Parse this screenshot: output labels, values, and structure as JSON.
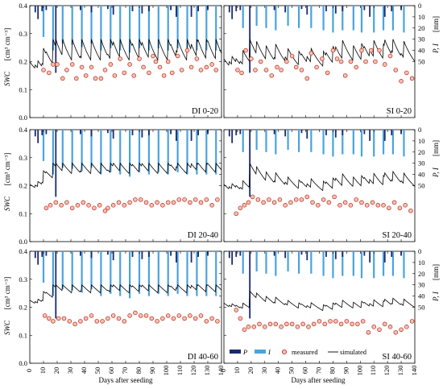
{
  "figure": {
    "x_axis_title": "Days after seeding",
    "y_left_title_main": "SWC",
    "y_left_title_units": "[cm³ cm⁻³]",
    "y_right_title_main": "P, I",
    "y_right_title_units": "[mm]",
    "x_tick_labels": [
      "0",
      "10",
      "20",
      "30",
      "40",
      "50",
      "60",
      "70",
      "80",
      "90",
      "100",
      "110",
      "120",
      "130",
      "140"
    ],
    "y_left_tick_labels": [
      "0.0",
      "0.1",
      "0.2",
      "0.3",
      "0.4"
    ],
    "y_right_tick_labels": [
      "0",
      "10",
      "20",
      "30",
      "40",
      "50"
    ],
    "legend": {
      "precip_label": "P",
      "irrig_label": "I",
      "measured_label": "measured",
      "simulated_label": "simulated"
    },
    "colors": {
      "precipitation": "#1b2a6b",
      "irrigation": "#4aa3df",
      "measured_edge": "#c0392b",
      "measured_fill": "#f6c2b3",
      "simulated": "#000000"
    }
  },
  "chart_data": {
    "type": "line",
    "xlabel": "Days after seeding",
    "ylabel": "SWC [cm³ cm⁻³]",
    "ylabel_right": "P, I [mm]",
    "xlim": [
      0,
      140
    ],
    "ylim": [
      0,
      0.4
    ],
    "ylim_right": [
      0,
      100
    ],
    "grid": false,
    "legend_position": "bottom-right",
    "events": {
      "precipitation": [
        {
          "day": 4,
          "mm": 6
        },
        {
          "day": 6,
          "mm": 12
        },
        {
          "day": 9,
          "mm": 5
        },
        {
          "day": 12,
          "mm": 4
        },
        {
          "day": 19,
          "mm": 60
        },
        {
          "day": 37,
          "mm": 4
        },
        {
          "day": 45,
          "mm": 6
        },
        {
          "day": 57,
          "mm": 3
        },
        {
          "day": 61,
          "mm": 8
        },
        {
          "day": 75,
          "mm": 5
        },
        {
          "day": 82,
          "mm": 7
        },
        {
          "day": 87,
          "mm": 5
        },
        {
          "day": 103,
          "mm": 4
        },
        {
          "day": 107,
          "mm": 10
        },
        {
          "day": 118,
          "mm": 10
        },
        {
          "day": 123,
          "mm": 5
        },
        {
          "day": 130,
          "mm": 4
        }
      ],
      "irrigation_DI": [
        {
          "day": 10,
          "mm": 28
        },
        {
          "day": 17,
          "mm": 40
        },
        {
          "day": 24,
          "mm": 34
        },
        {
          "day": 31,
          "mm": 35
        },
        {
          "day": 38,
          "mm": 37
        },
        {
          "day": 45,
          "mm": 34
        },
        {
          "day": 52,
          "mm": 40
        },
        {
          "day": 59,
          "mm": 38
        },
        {
          "day": 66,
          "mm": 40
        },
        {
          "day": 73,
          "mm": 42
        },
        {
          "day": 80,
          "mm": 38
        },
        {
          "day": 87,
          "mm": 40
        },
        {
          "day": 94,
          "mm": 38
        },
        {
          "day": 101,
          "mm": 40
        },
        {
          "day": 108,
          "mm": 38
        },
        {
          "day": 115,
          "mm": 40
        },
        {
          "day": 122,
          "mm": 40
        },
        {
          "day": 129,
          "mm": 40
        },
        {
          "day": 136,
          "mm": 40
        }
      ],
      "irrigation_SI": [
        {
          "day": 14,
          "mm": 20
        },
        {
          "day": 24,
          "mm": 18
        },
        {
          "day": 31,
          "mm": 20
        },
        {
          "day": 38,
          "mm": 22
        },
        {
          "day": 47,
          "mm": 18
        },
        {
          "day": 55,
          "mm": 20
        },
        {
          "day": 64,
          "mm": 20
        },
        {
          "day": 73,
          "mm": 22
        },
        {
          "day": 80,
          "mm": 24
        },
        {
          "day": 87,
          "mm": 22
        },
        {
          "day": 95,
          "mm": 22
        },
        {
          "day": 101,
          "mm": 24
        },
        {
          "day": 110,
          "mm": 24
        },
        {
          "day": 117,
          "mm": 22
        },
        {
          "day": 124,
          "mm": 22
        },
        {
          "day": 132,
          "mm": 24
        }
      ]
    },
    "panels": [
      {
        "label": "DI 0-20",
        "treatment": "DI",
        "depth": "0-20",
        "simulated_params": {
          "base": 0.135,
          "decay": 0.095,
          "floor": 0.12,
          "jump_per_mm": 0.0022
        },
        "measured": [
          [
            10,
            0.17
          ],
          [
            14,
            0.16
          ],
          [
            17,
            0.19
          ],
          [
            20,
            0.19
          ],
          [
            24,
            0.14
          ],
          [
            27,
            0.17
          ],
          [
            31,
            0.19
          ],
          [
            34,
            0.14
          ],
          [
            38,
            0.18
          ],
          [
            41,
            0.15
          ],
          [
            45,
            0.18
          ],
          [
            48,
            0.14
          ],
          [
            52,
            0.14
          ],
          [
            55,
            0.17
          ],
          [
            59,
            0.19
          ],
          [
            62,
            0.15
          ],
          [
            66,
            0.21
          ],
          [
            69,
            0.16
          ],
          [
            73,
            0.19
          ],
          [
            76,
            0.15
          ],
          [
            80,
            0.21
          ],
          [
            83,
            0.18
          ],
          [
            87,
            0.16
          ],
          [
            90,
            0.22
          ],
          [
            92,
            0.2
          ],
          [
            95,
            0.18
          ],
          [
            98,
            0.15
          ],
          [
            101,
            0.2
          ],
          [
            104,
            0.16
          ],
          [
            108,
            0.22
          ],
          [
            111,
            0.17
          ],
          [
            115,
            0.24
          ],
          [
            118,
            0.18
          ],
          [
            122,
            0.21
          ],
          [
            125,
            0.17
          ],
          [
            129,
            0.18
          ],
          [
            133,
            0.19
          ],
          [
            136,
            0.17
          ]
        ]
      },
      {
        "label": "SI 0-20",
        "treatment": "SI",
        "depth": "0-20",
        "simulated_params": {
          "base": 0.145,
          "decay": 0.08,
          "floor": 0.12,
          "jump_per_mm": 0.0025
        },
        "measured": [
          [
            10,
            0.17
          ],
          [
            13,
            0.16
          ],
          [
            16,
            0.24
          ],
          [
            20,
            0.21
          ],
          [
            23,
            0.17
          ],
          [
            27,
            0.2
          ],
          [
            31,
            0.17
          ],
          [
            35,
            0.15
          ],
          [
            39,
            0.18
          ],
          [
            42,
            0.17
          ],
          [
            46,
            0.2
          ],
          [
            50,
            0.22
          ],
          [
            53,
            0.18
          ],
          [
            57,
            0.17
          ],
          [
            61,
            0.14
          ],
          [
            64,
            0.23
          ],
          [
            68,
            0.18
          ],
          [
            72,
            0.21
          ],
          [
            76,
            0.16
          ],
          [
            80,
            0.24
          ],
          [
            83,
            0.21
          ],
          [
            86,
            0.2
          ],
          [
            89,
            0.15
          ],
          [
            93,
            0.2
          ],
          [
            97,
            0.18
          ],
          [
            101,
            0.24
          ],
          [
            104,
            0.2
          ],
          [
            108,
            0.24
          ],
          [
            111,
            0.2
          ],
          [
            114,
            0.24
          ],
          [
            118,
            0.19
          ],
          [
            122,
            0.22
          ],
          [
            126,
            0.17
          ],
          [
            130,
            0.13
          ],
          [
            134,
            0.16
          ],
          [
            138,
            0.14
          ]
        ]
      },
      {
        "label": "DI 20-40",
        "treatment": "DI",
        "depth": "20-40",
        "simulated_params": {
          "base": 0.14,
          "decay": 0.04,
          "floor": 0.12,
          "jump_per_mm": 0.0016
        },
        "measured": [
          [
            12,
            0.12
          ],
          [
            15,
            0.13
          ],
          [
            19,
            0.14
          ],
          [
            23,
            0.13
          ],
          [
            27,
            0.14
          ],
          [
            31,
            0.12
          ],
          [
            35,
            0.13
          ],
          [
            39,
            0.14
          ],
          [
            43,
            0.13
          ],
          [
            47,
            0.12
          ],
          [
            51,
            0.13
          ],
          [
            55,
            0.11
          ],
          [
            57,
            0.12
          ],
          [
            61,
            0.13
          ],
          [
            65,
            0.14
          ],
          [
            69,
            0.13
          ],
          [
            73,
            0.14
          ],
          [
            77,
            0.15
          ],
          [
            81,
            0.15
          ],
          [
            85,
            0.14
          ],
          [
            89,
            0.13
          ],
          [
            93,
            0.14
          ],
          [
            97,
            0.13
          ],
          [
            101,
            0.14
          ],
          [
            105,
            0.14
          ],
          [
            109,
            0.15
          ],
          [
            113,
            0.15
          ],
          [
            117,
            0.14
          ],
          [
            121,
            0.15
          ],
          [
            125,
            0.14
          ],
          [
            129,
            0.15
          ],
          [
            133,
            0.13
          ],
          [
            137,
            0.15
          ]
        ]
      },
      {
        "label": "SI 20-40",
        "treatment": "SI",
        "depth": "20-40",
        "simulated_params": {
          "base": 0.14,
          "decay": 0.06,
          "floor": 0.12,
          "jump_per_mm": 0.0016
        },
        "measured": [
          [
            9,
            0.1
          ],
          [
            12,
            0.12
          ],
          [
            15,
            0.13
          ],
          [
            18,
            0.14
          ],
          [
            21,
            0.16
          ],
          [
            25,
            0.15
          ],
          [
            29,
            0.14
          ],
          [
            33,
            0.15
          ],
          [
            37,
            0.14
          ],
          [
            41,
            0.15
          ],
          [
            45,
            0.13
          ],
          [
            49,
            0.14
          ],
          [
            53,
            0.15
          ],
          [
            57,
            0.15
          ],
          [
            61,
            0.16
          ],
          [
            65,
            0.14
          ],
          [
            69,
            0.13
          ],
          [
            73,
            0.15
          ],
          [
            77,
            0.14
          ],
          [
            81,
            0.16
          ],
          [
            85,
            0.13
          ],
          [
            89,
            0.14
          ],
          [
            93,
            0.13
          ],
          [
            97,
            0.15
          ],
          [
            101,
            0.14
          ],
          [
            105,
            0.13
          ],
          [
            109,
            0.14
          ],
          [
            113,
            0.13
          ],
          [
            117,
            0.13
          ],
          [
            121,
            0.12
          ],
          [
            125,
            0.14
          ],
          [
            129,
            0.12
          ],
          [
            133,
            0.13
          ],
          [
            137,
            0.11
          ]
        ]
      },
      {
        "label": "DI 40-60",
        "treatment": "DI",
        "depth": "40-60",
        "simulated_params": {
          "base": 0.16,
          "decay": 0.03,
          "floor": 0.12,
          "jump_per_mm": 0.0012
        },
        "measured": [
          [
            11,
            0.17
          ],
          [
            14,
            0.16
          ],
          [
            17,
            0.15
          ],
          [
            21,
            0.16
          ],
          [
            25,
            0.16
          ],
          [
            29,
            0.15
          ],
          [
            33,
            0.14
          ],
          [
            37,
            0.15
          ],
          [
            41,
            0.16
          ],
          [
            45,
            0.17
          ],
          [
            49,
            0.15
          ],
          [
            53,
            0.15
          ],
          [
            57,
            0.16
          ],
          [
            61,
            0.17
          ],
          [
            65,
            0.16
          ],
          [
            69,
            0.15
          ],
          [
            73,
            0.17
          ],
          [
            77,
            0.18
          ],
          [
            81,
            0.17
          ],
          [
            85,
            0.17
          ],
          [
            89,
            0.16
          ],
          [
            93,
            0.15
          ],
          [
            97,
            0.16
          ],
          [
            101,
            0.17
          ],
          [
            105,
            0.16
          ],
          [
            109,
            0.17
          ],
          [
            113,
            0.16
          ],
          [
            117,
            0.17
          ],
          [
            121,
            0.16
          ],
          [
            125,
            0.17
          ],
          [
            129,
            0.15
          ],
          [
            133,
            0.16
          ],
          [
            137,
            0.15
          ]
        ]
      },
      {
        "label": "SI 40-60",
        "treatment": "SI",
        "depth": "40-60",
        "simulated_params": {
          "base": 0.15,
          "decay": 0.04,
          "floor": 0.12,
          "jump_per_mm": 0.001
        },
        "measured": [
          [
            9,
            0.19
          ],
          [
            12,
            0.16
          ],
          [
            15,
            0.12
          ],
          [
            18,
            0.13
          ],
          [
            22,
            0.13
          ],
          [
            26,
            0.14
          ],
          [
            30,
            0.13
          ],
          [
            34,
            0.14
          ],
          [
            38,
            0.14
          ],
          [
            42,
            0.13
          ],
          [
            46,
            0.14
          ],
          [
            50,
            0.14
          ],
          [
            54,
            0.13
          ],
          [
            58,
            0.14
          ],
          [
            62,
            0.13
          ],
          [
            66,
            0.14
          ],
          [
            70,
            0.15
          ],
          [
            74,
            0.14
          ],
          [
            78,
            0.15
          ],
          [
            82,
            0.15
          ],
          [
            86,
            0.14
          ],
          [
            90,
            0.15
          ],
          [
            94,
            0.14
          ],
          [
            98,
            0.14
          ],
          [
            102,
            0.15
          ],
          [
            106,
            0.11
          ],
          [
            110,
            0.13
          ],
          [
            114,
            0.12
          ],
          [
            118,
            0.14
          ],
          [
            122,
            0.13
          ],
          [
            126,
            0.11
          ],
          [
            130,
            0.12
          ],
          [
            134,
            0.13
          ],
          [
            138,
            0.15
          ]
        ]
      }
    ]
  }
}
